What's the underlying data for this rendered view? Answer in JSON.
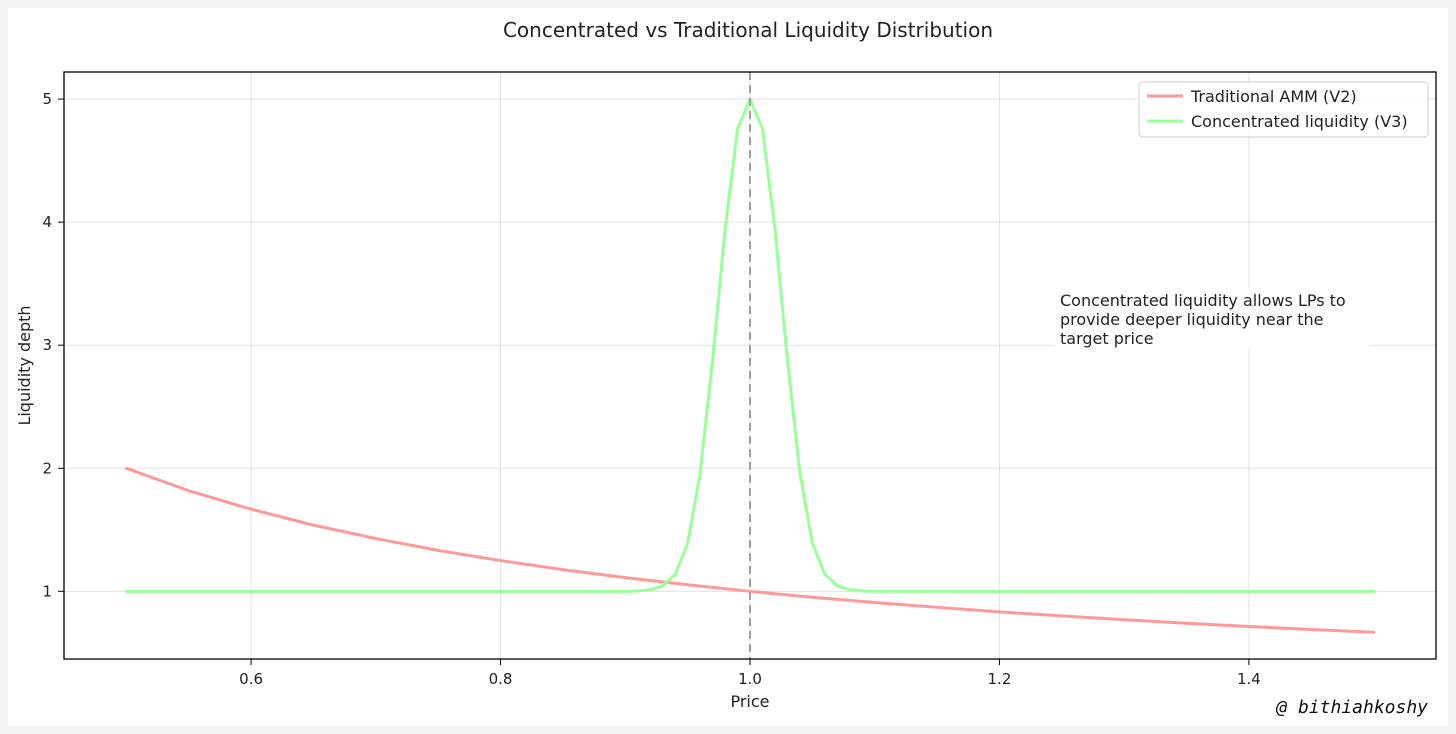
{
  "chart_data": {
    "type": "line",
    "title": "Concentrated vs Traditional Liquidity Distribution",
    "xlabel": "Price",
    "ylabel": "Liquidity depth",
    "xlim": [
      0.45,
      1.55
    ],
    "ylim": [
      0.45,
      5.22
    ],
    "xticks": [
      0.6,
      0.8,
      1.0,
      1.2,
      1.4
    ],
    "xtick_labels": [
      "0.6",
      "0.8",
      "1.0",
      "1.2",
      "1.4"
    ],
    "yticks": [
      1,
      2,
      3,
      4,
      5
    ],
    "ytick_labels": [
      "1",
      "2",
      "3",
      "4",
      "5"
    ],
    "grid": true,
    "legend_position": "top-right",
    "vline": {
      "x": 1.0,
      "style": "dashed",
      "color": "#a0a0a0"
    },
    "annotation": "Concentrated liquidity allows LPs to\nprovide deeper liquidity near the\ntarget price",
    "series": [
      {
        "name": "Traditional AMM (V2)",
        "color": "#ff9999",
        "x": [
          0.5,
          0.55,
          0.6,
          0.65,
          0.7,
          0.75,
          0.8,
          0.85,
          0.9,
          0.95,
          1.0,
          1.05,
          1.1,
          1.15,
          1.2,
          1.25,
          1.3,
          1.35,
          1.4,
          1.45,
          1.5
        ],
        "y": [
          2.0,
          1.818,
          1.667,
          1.538,
          1.429,
          1.333,
          1.25,
          1.176,
          1.111,
          1.053,
          1.0,
          0.952,
          0.909,
          0.87,
          0.833,
          0.8,
          0.769,
          0.741,
          0.714,
          0.69,
          0.667
        ]
      },
      {
        "name": "Concentrated liquidity (V3)",
        "color": "#99ff99",
        "x": [
          0.5,
          0.9,
          0.91,
          0.92,
          0.93,
          0.94,
          0.95,
          0.96,
          0.97,
          0.98,
          0.99,
          1.0,
          1.01,
          1.02,
          1.03,
          1.04,
          1.05,
          1.06,
          1.07,
          1.08,
          1.09,
          1.1,
          1.5
        ],
        "y": [
          1.0,
          1.0,
          1.003,
          1.013,
          1.044,
          1.14,
          1.39,
          1.96,
          2.88,
          3.94,
          4.76,
          5.0,
          4.76,
          3.94,
          2.88,
          1.96,
          1.39,
          1.14,
          1.044,
          1.013,
          1.003,
          1.0,
          1.0
        ]
      }
    ]
  },
  "watermark": "@ bithiahkoshy"
}
